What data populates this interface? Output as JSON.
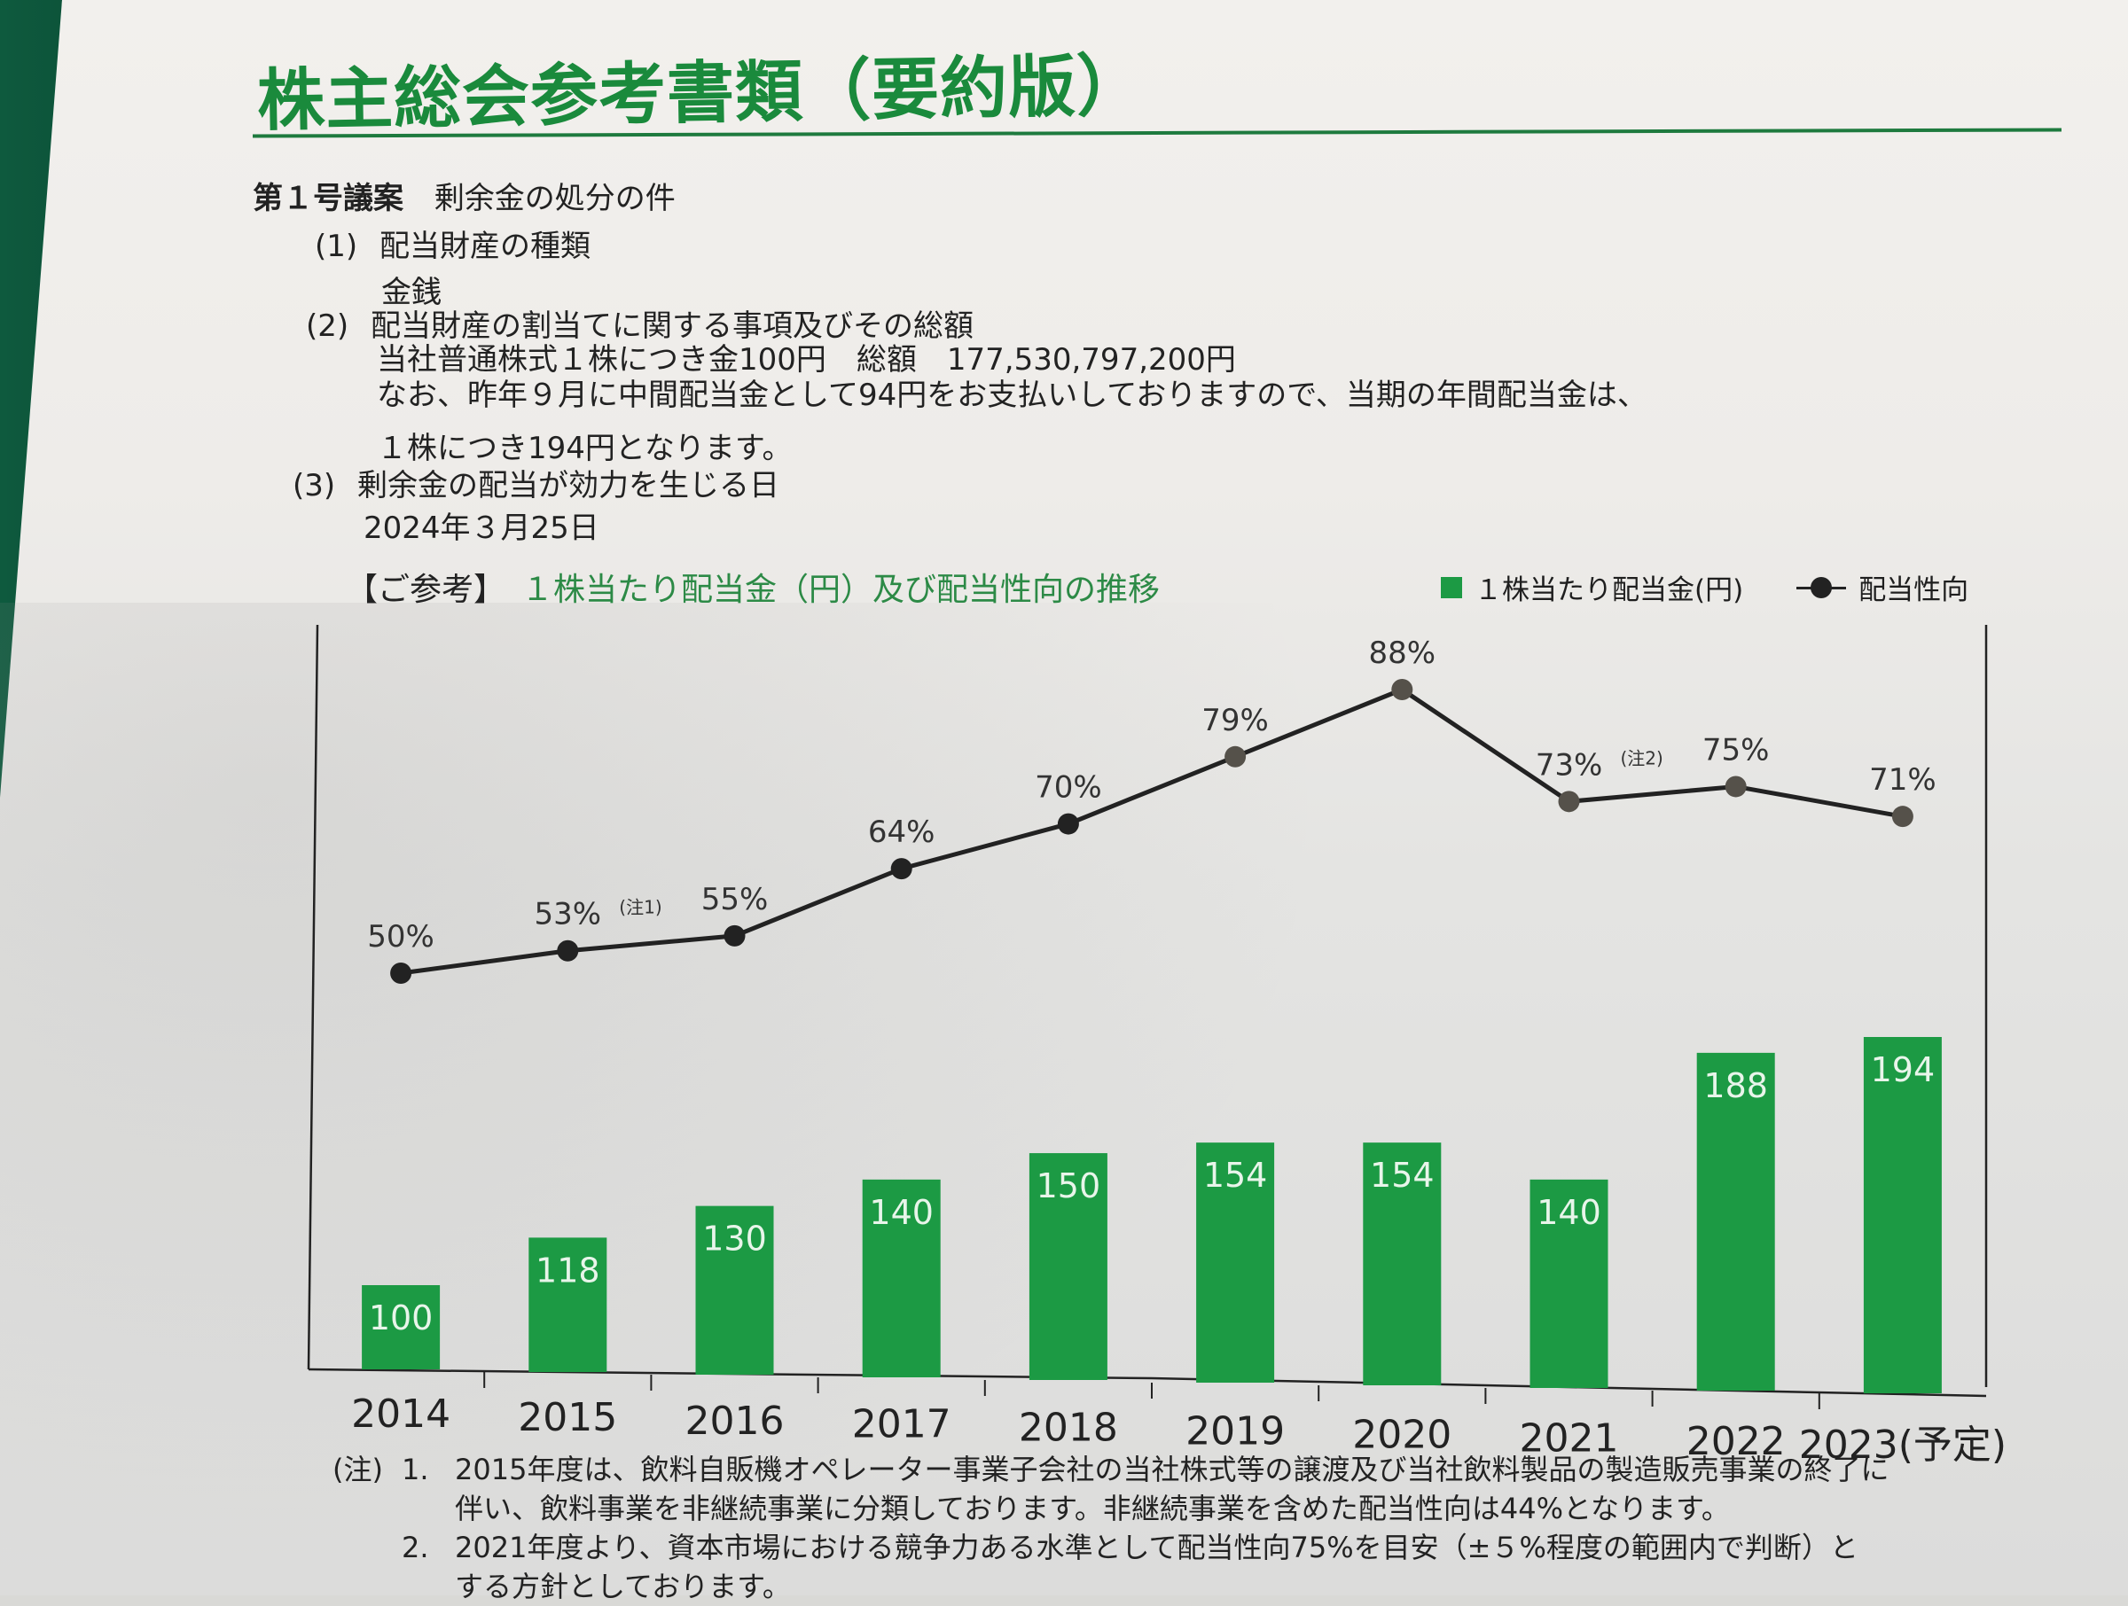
{
  "document": {
    "title": "株主総会参考書類（要約版）",
    "proposal": {
      "label": "第１号議案",
      "subject": "剰余金の処分の件",
      "items": [
        {
          "number": "(1)",
          "heading": "配当財産の種類",
          "lines": [
            "金銭"
          ]
        },
        {
          "number": "(2)",
          "heading": "配当財産の割当てに関する事項及びその総額",
          "lines": [
            "当社普通株式１株につき金100円　総額　177,530,797,200円",
            "なお、昨年９月に中間配当金として94円をお支払いしておりますので、当期の年間配当金は、",
            "１株につき194円となります。"
          ]
        },
        {
          "number": "(3)",
          "heading": "剰余金の配当が効力を生じる日",
          "lines": [
            "2024年３月25日"
          ]
        }
      ]
    },
    "notes": {
      "label": "(注)",
      "items": [
        {
          "number": "1.",
          "lines": [
            "2015年度は、飲料自販機オペレーター事業子会社の当社株式等の譲渡及び当社飲料製品の製造販売事業の終了に",
            "伴い、飲料事業を非継続事業に分類しております。非継続事業を含めた配当性向は44%となります。"
          ]
        },
        {
          "number": "2.",
          "lines": [
            "2021年度より、資本市場における競争力ある水準として配当性向75%を目安（±５%程度の範囲内で判断）と",
            "する方針としております。"
          ]
        }
      ]
    }
  },
  "chart_data": {
    "type": "bar+line",
    "title_prefix": "【ご参考】",
    "title": "１株当たり配当金（円）及び配当性向の推移",
    "categories": [
      "2014",
      "2015",
      "2016",
      "2017",
      "2018",
      "2019",
      "2020",
      "2021",
      "2022",
      "2023(予定)"
    ],
    "series": [
      {
        "name": "１株当たり配当金(円)",
        "type": "bar",
        "color": "#1c9a44",
        "values": [
          100,
          118,
          130,
          140,
          150,
          154,
          154,
          140,
          188,
          194
        ],
        "labels": [
          "100",
          "118",
          "130",
          "140",
          "150",
          "154",
          "154",
          "140",
          "188",
          "194"
        ]
      },
      {
        "name": "配当性向",
        "type": "line",
        "color": "#222222",
        "unit": "%",
        "values": [
          50,
          53,
          55,
          64,
          70,
          79,
          88,
          73,
          75,
          71
        ],
        "labels": [
          "50%",
          "53%",
          "55%",
          "64%",
          "70%",
          "79%",
          "88%",
          "73%",
          "75%",
          "71%"
        ],
        "annotations": {
          "1": "(注1)",
          "7": "(注2)"
        }
      }
    ],
    "legend_position": "top-right",
    "grid": false,
    "xlabel": "",
    "ylabel": ""
  },
  "colors": {
    "accent_green": "#1a8a3c",
    "bar_green": "#1c9a44",
    "line_black": "#222222"
  }
}
